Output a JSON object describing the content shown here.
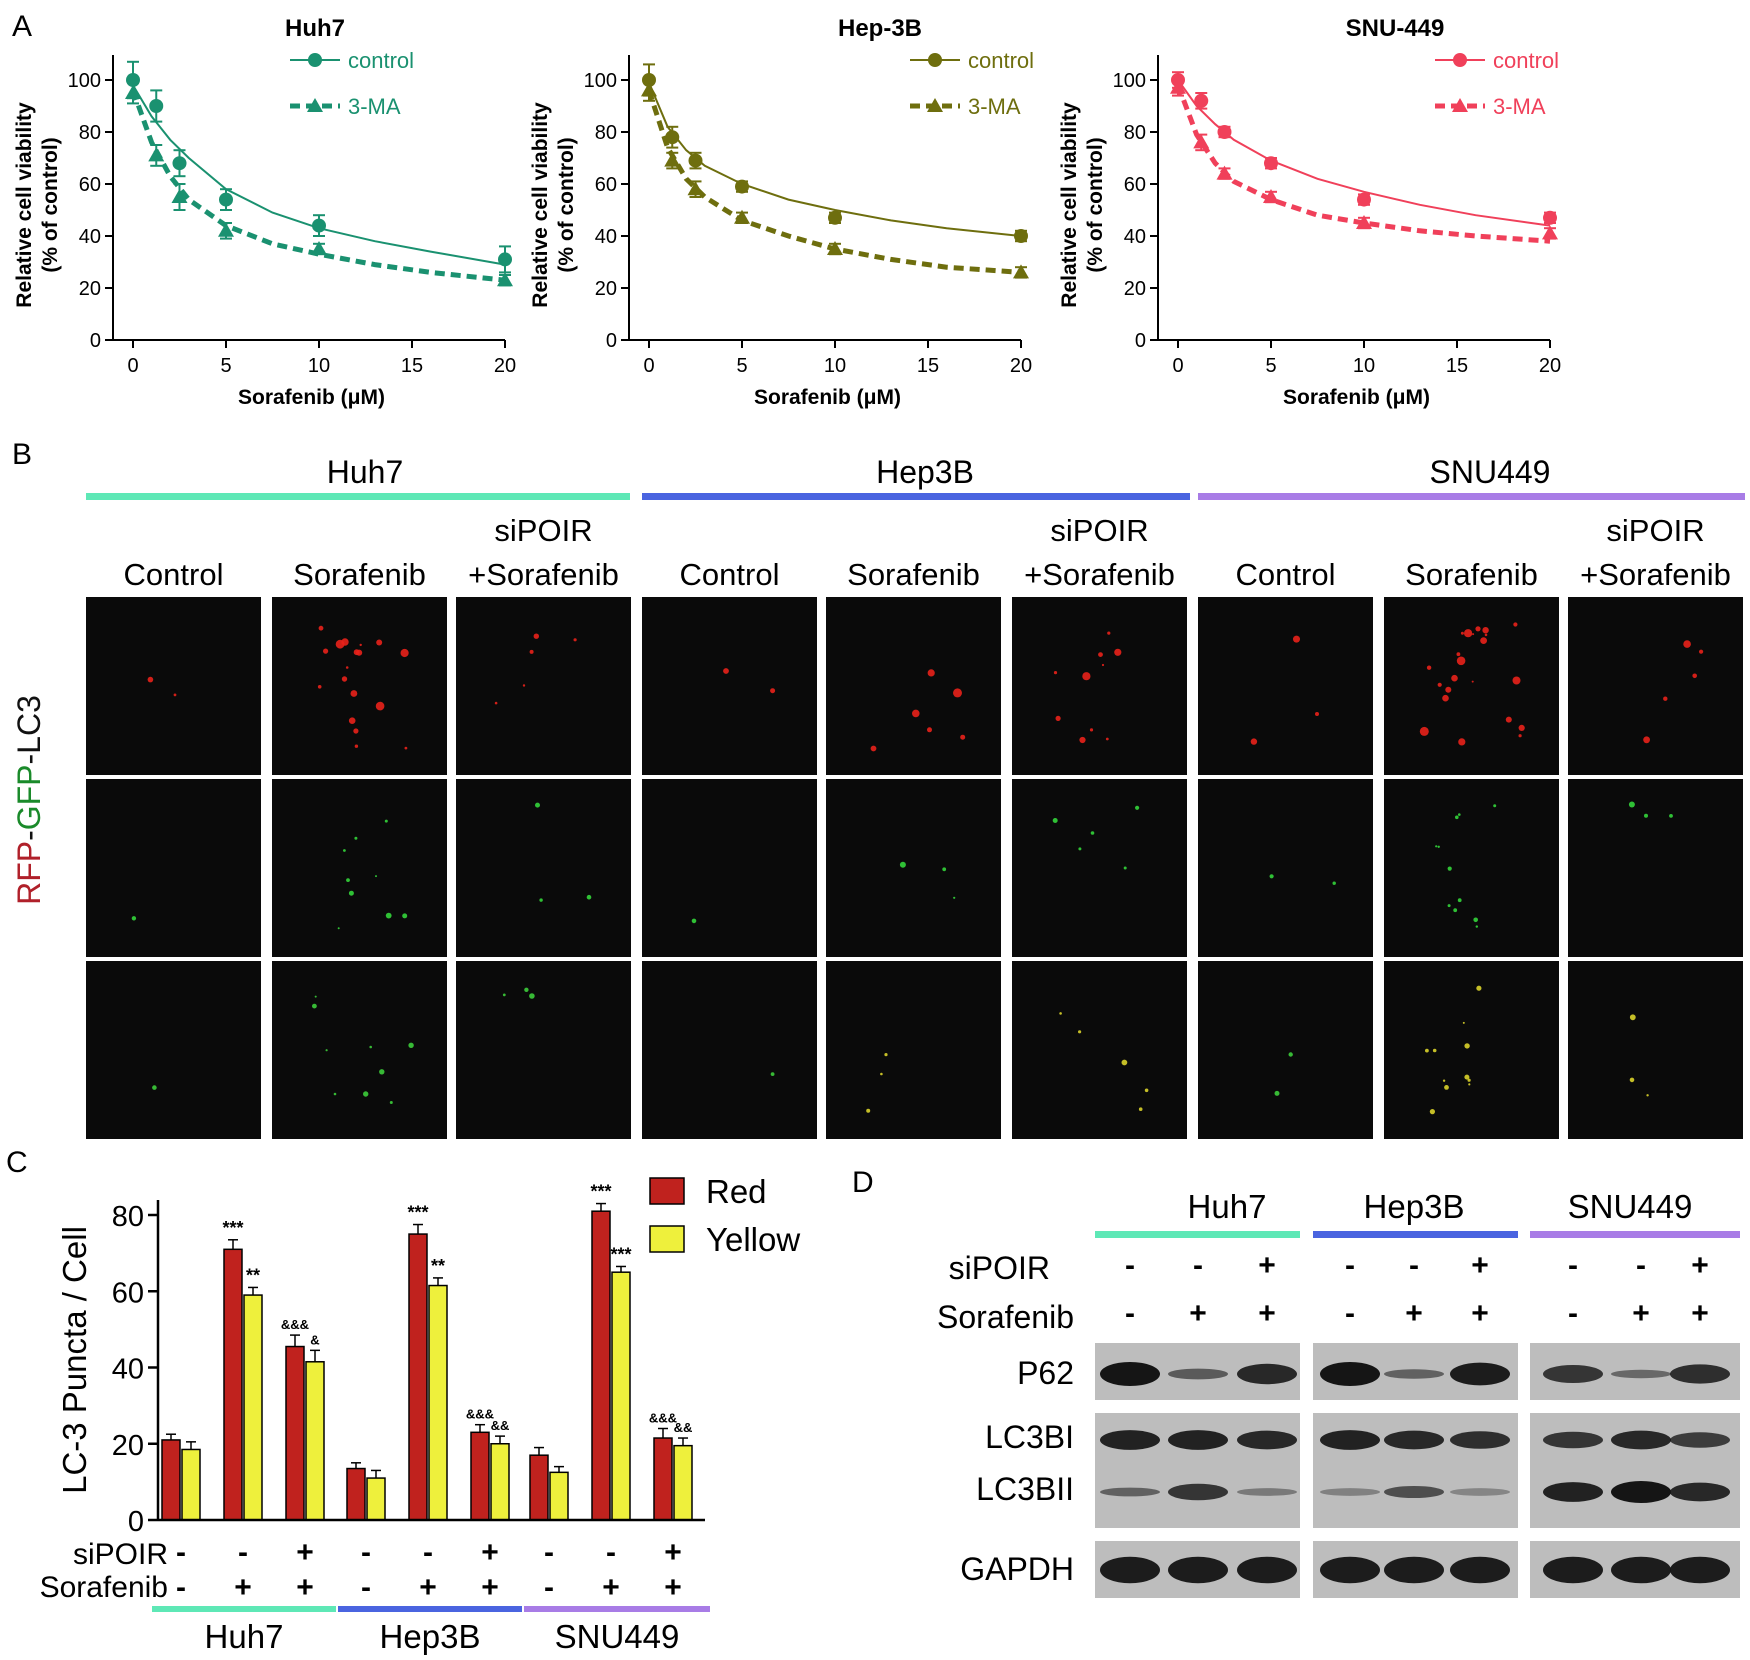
{
  "panel_letters": {
    "a": "A",
    "b": "B",
    "c": "C",
    "d": "D"
  },
  "colors": {
    "huh7": "#1a9170",
    "hep3b": "#6e6e0e",
    "snu449": "#f0405a",
    "bar_huh7": "#5ee8b6",
    "bar_hep3b": "#4a64e0",
    "bar_snu449": "#a87ce6",
    "red_bar": "#c0221e",
    "yellow_bar": "#eef03c"
  },
  "chart_data": [
    {
      "type": "line",
      "title": "Huh7",
      "xlabel": "Sorafenib (μM)",
      "ylabel": "Relative cell viability (% of control)",
      "xlim": [
        0,
        20
      ],
      "ylim": [
        0,
        110
      ],
      "xticks": [
        0,
        5,
        10,
        15,
        20
      ],
      "yticks": [
        0,
        20,
        40,
        60,
        80,
        100
      ],
      "series": [
        {
          "name": "control",
          "style": "solid-circle",
          "x": [
            0,
            1.25,
            2.5,
            5,
            10,
            20
          ],
          "y": [
            100,
            90,
            68,
            54,
            44,
            31
          ],
          "err": [
            7,
            6,
            5,
            4,
            4,
            5
          ],
          "fit": [
            [
              0,
              98
            ],
            [
              1,
              86
            ],
            [
              2,
              77
            ],
            [
              3,
              70
            ],
            [
              5,
              58
            ],
            [
              7.5,
              49
            ],
            [
              10,
              43
            ],
            [
              13,
              38
            ],
            [
              16,
              34
            ],
            [
              20,
              29
            ]
          ]
        },
        {
          "name": "3-MA",
          "style": "dashed-triangle",
          "x": [
            0,
            1.25,
            2.5,
            5,
            10,
            20
          ],
          "y": [
            95,
            71,
            55,
            42,
            35,
            23
          ],
          "err": [
            4,
            4,
            5,
            3,
            2,
            2
          ],
          "fit": [
            [
              0,
              96
            ],
            [
              1,
              76
            ],
            [
              2,
              63
            ],
            [
              3,
              54
            ],
            [
              5,
              44
            ],
            [
              7.5,
              37
            ],
            [
              10,
              33
            ],
            [
              13,
              29
            ],
            [
              16,
              26
            ],
            [
              20,
              23
            ]
          ]
        }
      ]
    },
    {
      "type": "line",
      "title": "Hep-3B",
      "xlabel": "Sorafenib (μM)",
      "ylabel": "Relative cell viability (% of control)",
      "xlim": [
        0,
        20
      ],
      "ylim": [
        0,
        110
      ],
      "xticks": [
        0,
        5,
        10,
        15,
        20
      ],
      "yticks": [
        0,
        20,
        40,
        60,
        80,
        100
      ],
      "series": [
        {
          "name": "control",
          "style": "solid-circle",
          "x": [
            0,
            1.25,
            2.5,
            5,
            10,
            20
          ],
          "y": [
            100,
            78,
            69,
            59,
            47,
            40
          ],
          "err": [
            6,
            4,
            3,
            2,
            2,
            2
          ],
          "fit": [
            [
              0,
              99
            ],
            [
              1,
              82
            ],
            [
              2,
              73
            ],
            [
              3,
              67
            ],
            [
              5,
              60
            ],
            [
              7.5,
              54
            ],
            [
              10,
              50
            ],
            [
              13,
              46
            ],
            [
              16,
              43
            ],
            [
              20,
              40
            ]
          ]
        },
        {
          "name": "3-MA",
          "style": "dashed-triangle",
          "x": [
            0,
            1.25,
            2.5,
            5,
            10,
            20
          ],
          "y": [
            96,
            69,
            58,
            47,
            35,
            26
          ],
          "err": [
            4,
            3,
            3,
            2,
            2,
            2
          ],
          "fit": [
            [
              0,
              96
            ],
            [
              1,
              74
            ],
            [
              2,
              62
            ],
            [
              3,
              55
            ],
            [
              5,
              46
            ],
            [
              7.5,
              40
            ],
            [
              10,
              35
            ],
            [
              13,
              31
            ],
            [
              16,
              28
            ],
            [
              20,
              26
            ]
          ]
        }
      ]
    },
    {
      "type": "line",
      "title": "SNU-449",
      "xlabel": "Sorafenib (μM)",
      "ylabel": "Relative cell viability (% of control)",
      "xlim": [
        0,
        20
      ],
      "ylim": [
        0,
        110
      ],
      "xticks": [
        0,
        5,
        10,
        15,
        20
      ],
      "yticks": [
        0,
        20,
        40,
        60,
        80,
        100
      ],
      "series": [
        {
          "name": "control",
          "style": "solid-circle",
          "x": [
            0,
            1.25,
            2.5,
            5,
            10,
            20
          ],
          "y": [
            100,
            92,
            80,
            68,
            54,
            47
          ],
          "err": [
            3,
            3,
            2,
            2,
            2,
            2
          ],
          "fit": [
            [
              0,
              100
            ],
            [
              1,
              90
            ],
            [
              2,
              83
            ],
            [
              3,
              77
            ],
            [
              5,
              69
            ],
            [
              7.5,
              62
            ],
            [
              10,
              57
            ],
            [
              13,
              52
            ],
            [
              16,
              48
            ],
            [
              20,
              44
            ]
          ]
        },
        {
          "name": "3-MA",
          "style": "dashed-triangle",
          "x": [
            0,
            1.25,
            2.5,
            5,
            10,
            20
          ],
          "y": [
            97,
            76,
            64,
            55,
            45,
            41
          ],
          "err": [
            3,
            3,
            2,
            2,
            2,
            2
          ],
          "fit": [
            [
              0,
              98
            ],
            [
              1,
              79
            ],
            [
              2,
              68
            ],
            [
              3,
              61
            ],
            [
              5,
              54
            ],
            [
              7.5,
              48
            ],
            [
              10,
              45
            ],
            [
              13,
              42
            ],
            [
              16,
              40
            ],
            [
              20,
              38
            ]
          ]
        }
      ]
    },
    {
      "type": "bar",
      "ylabel": "LC-3 Puncta / Cell",
      "ylim": [
        0,
        85
      ],
      "yticks": [
        0,
        20,
        40,
        60,
        80
      ],
      "legend": [
        "Red",
        "Yellow"
      ],
      "row_labels": [
        "siPOIR",
        "Sorafenib"
      ],
      "groups": [
        {
          "name": "Huh7",
          "conditions": [
            {
              "siPOIR": "-",
              "sorafenib": "-",
              "red": 21,
              "red_err": 1.5,
              "yellow": 18.5,
              "yellow_err": 2,
              "red_mark": "",
              "yellow_mark": ""
            },
            {
              "siPOIR": "-",
              "sorafenib": "+",
              "red": 71,
              "red_err": 2.5,
              "yellow": 59,
              "yellow_err": 2,
              "red_mark": "***",
              "yellow_mark": "**"
            },
            {
              "siPOIR": "+",
              "sorafenib": "+",
              "red": 45.5,
              "red_err": 3,
              "yellow": 41.5,
              "yellow_err": 3,
              "red_mark": "&&&",
              "yellow_mark": "&"
            }
          ]
        },
        {
          "name": "Hep3B",
          "conditions": [
            {
              "siPOIR": "-",
              "sorafenib": "-",
              "red": 13.5,
              "red_err": 1.5,
              "yellow": 11,
              "yellow_err": 2,
              "red_mark": "",
              "yellow_mark": ""
            },
            {
              "siPOIR": "-",
              "sorafenib": "+",
              "red": 75,
              "red_err": 2.5,
              "yellow": 61.5,
              "yellow_err": 2,
              "red_mark": "***",
              "yellow_mark": "**"
            },
            {
              "siPOIR": "+",
              "sorafenib": "+",
              "red": 23,
              "red_err": 2,
              "yellow": 20,
              "yellow_err": 2,
              "red_mark": "&&&",
              "yellow_mark": "&&"
            }
          ]
        },
        {
          "name": "SNU449",
          "conditions": [
            {
              "siPOIR": "-",
              "sorafenib": "-",
              "red": 17,
              "red_err": 2,
              "yellow": 12.5,
              "yellow_err": 1.5,
              "red_mark": "",
              "yellow_mark": ""
            },
            {
              "siPOIR": "-",
              "sorafenib": "+",
              "red": 81,
              "red_err": 2,
              "yellow": 65,
              "yellow_err": 1.5,
              "red_mark": "***",
              "yellow_mark": "***"
            },
            {
              "siPOIR": "+",
              "sorafenib": "+",
              "red": 21.5,
              "red_err": 2.5,
              "yellow": 19.5,
              "yellow_err": 2,
              "red_mark": "&&&",
              "yellow_mark": "&&"
            }
          ]
        }
      ]
    }
  ],
  "panel_b": {
    "groups": [
      "Huh7",
      "Hep3B",
      "SNU449"
    ],
    "columns": [
      {
        "line1": "",
        "line2": "Control"
      },
      {
        "line1": "",
        "line2": "Sorafenib"
      },
      {
        "line1": "siPOIR",
        "line2": "+Sorafenib"
      }
    ],
    "row_label": {
      "rfp": "RFP",
      "dash1": "-",
      "gfp": "GFP",
      "lc3": "-LC3"
    }
  },
  "panel_d": {
    "groups": [
      "Huh7",
      "Hep3B",
      "SNU449"
    ],
    "row_labels": {
      "sipoir": "siPOIR",
      "sorafenib": "Sorafenib"
    },
    "sipoir_signs": [
      "-",
      "-",
      "+"
    ],
    "sorafenib_signs": [
      "-",
      "+",
      "+"
    ],
    "band_labels": {
      "p62": "P62",
      "lc3bi": "LC3BI",
      "lc3bii": "LC3BII",
      "gapdh": "GAPDH"
    },
    "bands": {
      "p62": [
        [
          1.0,
          0.45,
          0.85
        ],
        [
          1.0,
          0.4,
          0.95
        ],
        [
          0.75,
          0.35,
          0.8
        ]
      ],
      "lc3bi": [
        [
          0.9,
          0.9,
          0.85
        ],
        [
          0.9,
          0.85,
          0.8
        ],
        [
          0.75,
          0.85,
          0.7
        ]
      ],
      "lc3bii": [
        [
          0.4,
          0.75,
          0.2
        ],
        [
          0.15,
          0.55,
          0.1
        ],
        [
          0.9,
          1.0,
          0.85
        ]
      ],
      "gapdh": [
        [
          0.95,
          0.95,
          0.95
        ],
        [
          0.95,
          0.95,
          0.95
        ],
        [
          0.95,
          0.95,
          0.95
        ]
      ]
    }
  }
}
